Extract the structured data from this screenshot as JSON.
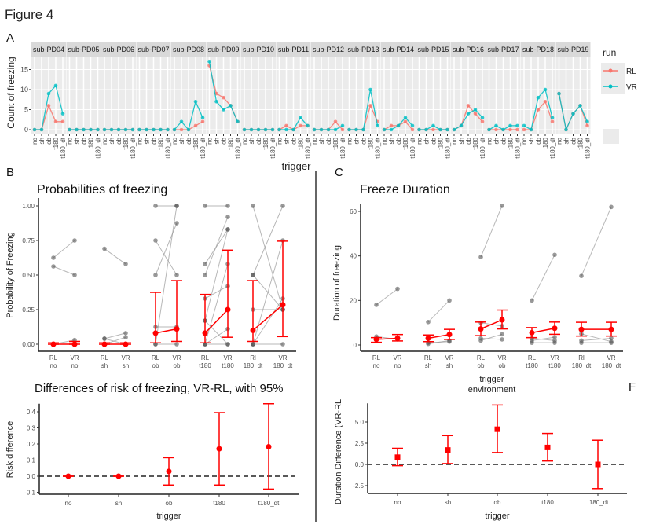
{
  "figure_title": "Figure 4",
  "panel_labels": {
    "a": "A",
    "b": "B",
    "c": "C",
    "f": "F"
  },
  "colors": {
    "RL": "#f8766d",
    "VR": "#00bfc4",
    "mean": "#ff0000",
    "individual": "#808080"
  },
  "chart_data": [
    {
      "id": "A",
      "type": "line",
      "xlabel": "trigger",
      "ylabel": "Count of freezing",
      "categories": [
        "no",
        "sh",
        "ob",
        "t180",
        "t180_dt"
      ],
      "yticks": [
        0,
        5,
        10,
        15
      ],
      "ylim": [
        0,
        17.5
      ],
      "grid": true,
      "legend": {
        "title": "run",
        "placement": "right",
        "entries": [
          "RL",
          "VR"
        ]
      },
      "facets": [
        {
          "label": "sub-PD04",
          "RL": [
            0,
            0,
            6,
            2,
            2
          ],
          "VR": [
            0,
            0,
            9,
            11,
            4
          ]
        },
        {
          "label": "sub-PD05",
          "RL": [
            0,
            0,
            0,
            0,
            0
          ],
          "VR": [
            0,
            0,
            0,
            0,
            0
          ]
        },
        {
          "label": "sub-PD06",
          "RL": [
            0,
            0,
            0,
            0,
            0
          ],
          "VR": [
            0,
            0,
            0,
            0,
            0
          ]
        },
        {
          "label": "sub-PD07",
          "RL": [
            0,
            0,
            0,
            0,
            0
          ],
          "VR": [
            0,
            0,
            0,
            0,
            0
          ]
        },
        {
          "label": "sub-PD08",
          "RL": [
            0,
            0,
            0,
            1,
            2
          ],
          "VR": [
            0,
            2,
            0,
            7,
            3
          ]
        },
        {
          "label": "sub-PD09",
          "RL": [
            16,
            9,
            8,
            6,
            2
          ],
          "VR": [
            17,
            7,
            5,
            6,
            2
          ]
        },
        {
          "label": "sub-PD10",
          "RL": [
            0,
            0,
            0,
            0,
            0
          ],
          "VR": [
            0,
            0,
            0,
            0,
            0
          ]
        },
        {
          "label": "sub-PD11",
          "RL": [
            0,
            1,
            0,
            1,
            1
          ],
          "VR": [
            0,
            0,
            0,
            3,
            1
          ]
        },
        {
          "label": "sub-PD12",
          "RL": [
            0,
            0,
            0,
            2,
            0
          ],
          "VR": [
            0,
            0,
            0,
            0,
            1
          ]
        },
        {
          "label": "sub-PD13",
          "RL": [
            0,
            0,
            0,
            6,
            2
          ],
          "VR": [
            0,
            0,
            0,
            10,
            1
          ]
        },
        {
          "label": "sub-PD14",
          "RL": [
            0,
            1,
            1,
            2,
            0
          ],
          "VR": [
            0,
            0,
            1,
            3,
            1
          ]
        },
        {
          "label": "sub-PD15",
          "RL": [
            0,
            0,
            0,
            0,
            0
          ],
          "VR": [
            0,
            0,
            1,
            0,
            0
          ]
        },
        {
          "label": "sub-PD16",
          "RL": [
            0,
            1,
            6,
            4,
            2
          ],
          "VR": [
            0,
            1,
            4,
            5,
            3
          ]
        },
        {
          "label": "sub-PD17",
          "RL": [
            0,
            0,
            0,
            0,
            0
          ],
          "VR": [
            0,
            1,
            0,
            1,
            1
          ]
        },
        {
          "label": "sub-PD18",
          "RL": [
            0,
            0,
            5,
            7,
            2
          ],
          "VR": [
            1,
            0,
            8,
            10,
            3
          ]
        },
        {
          "label": "sub-PD19",
          "RL": [
            9,
            0,
            4,
            6,
            1
          ],
          "VR": [
            9,
            0,
            4,
            6,
            2
          ]
        }
      ]
    },
    {
      "id": "B",
      "type": "line",
      "title": "Probabilities of freezing",
      "ylabel": "Probability of Freezing",
      "xlabel": "",
      "ylim": [
        0,
        1
      ],
      "yticks": [
        "0.00",
        "0.25",
        "0.50",
        "0.75",
        "1.00"
      ],
      "grid": false,
      "groups": [
        {
          "labels": [
            [
              "RL",
              "no"
            ],
            [
              "VR",
              "no"
            ]
          ],
          "mean": [
            0,
            0
          ],
          "ci": [
            [
              0,
              0.01
            ],
            [
              0,
              0.02
            ]
          ],
          "pairs": [
            [
              0.625,
              0.75
            ],
            [
              0.5625,
              0.5
            ],
            [
              0,
              0.03
            ]
          ]
        },
        {
          "labels": [
            [
              "RL",
              "sh"
            ],
            [
              "VR",
              "sh"
            ]
          ],
          "mean": [
            0,
            0
          ],
          "ci": [
            [
              0,
              0.01
            ],
            [
              0,
              0.01
            ]
          ],
          "pairs": [
            [
              0.69,
              0.58
            ],
            [
              0.04,
              0
            ],
            [
              0.04,
              0.08
            ],
            [
              0,
              0.05
            ]
          ]
        },
        {
          "labels": [
            [
              "RL",
              "ob"
            ],
            [
              "VR",
              "ob"
            ]
          ],
          "mean": [
            0.08,
            0.11
          ],
          "ci": [
            [
              0.01,
              0.375
            ],
            [
              0.02,
              0.46
            ]
          ],
          "pairs": [
            [
              1,
              1
            ],
            [
              0.75,
              0.5
            ],
            [
              0.5,
              0.875
            ],
            [
              0.125,
              0.125
            ],
            [
              0,
              1
            ],
            [
              0,
              0
            ]
          ]
        },
        {
          "labels": [
            [
              "RL",
              "t180"
            ],
            [
              "VR",
              "t180"
            ]
          ],
          "mean": [
            0.08,
            0.25
          ],
          "ci": [
            [
              0.01,
              0.36
            ],
            [
              0.05,
              0.68
            ]
          ],
          "pairs": [
            [
              1,
              1
            ],
            [
              0.58,
              0.83
            ],
            [
              0.5,
              0.92
            ],
            [
              0.33,
              0.42
            ],
            [
              0.17,
              0.83
            ],
            [
              0.17,
              0
            ],
            [
              0,
              0.58
            ],
            [
              0,
              0.11
            ],
            [
              0,
              0
            ]
          ]
        },
        {
          "labels": [
            [
              "Rl",
              "180_dt"
            ],
            [
              "VR",
              "180_dt"
            ]
          ],
          "mean": [
            0.1,
            0.285
          ],
          "ci": [
            [
              0.02,
              0.46
            ],
            [
              0.055,
              0.745
            ]
          ],
          "pairs": [
            [
              1,
              0.25
            ],
            [
              0.5,
              1
            ],
            [
              0.5,
              0.25
            ],
            [
              0.25,
              0.25
            ],
            [
              0,
              0.75
            ],
            [
              0,
              0.33
            ],
            [
              0,
              0
            ]
          ]
        }
      ]
    },
    {
      "id": "C",
      "type": "line",
      "title": "Freeze Duration",
      "ylabel": "Duration of freezing",
      "xlabel": [
        "trigger",
        "environment"
      ],
      "ylim": [
        0,
        65
      ],
      "yticks": [
        "0",
        "20",
        "40",
        "60"
      ],
      "grid": false,
      "groups": [
        {
          "labels": [
            [
              "RL",
              "no"
            ],
            [
              "VR",
              "no"
            ]
          ],
          "mean": [
            2.5,
            3.0
          ],
          "ci": [
            [
              1.2,
              3.3
            ],
            [
              1.8,
              4.7
            ]
          ],
          "pairs": [
            [
              18,
              25.2
            ],
            [
              3.8,
              2.5
            ]
          ]
        },
        {
          "labels": [
            [
              "RL",
              "sh"
            ],
            [
              "VR",
              "sh"
            ]
          ],
          "mean": [
            3.0,
            4.7
          ],
          "ci": [
            [
              1.5,
              4.5
            ],
            [
              2.5,
              7.0
            ]
          ],
          "pairs": [
            [
              10.3,
              20
            ],
            [
              0.5,
              2
            ],
            [
              1,
              1.5
            ]
          ]
        },
        {
          "labels": [
            [
              "RL",
              "ob"
            ],
            [
              "VR",
              "ob"
            ]
          ],
          "mean": [
            7.2,
            11.3
          ],
          "ci": [
            [
              4.2,
              10.3
            ],
            [
              7.2,
              15.7
            ]
          ],
          "pairs": [
            [
              39.5,
              62.5
            ],
            [
              2,
              4.8
            ],
            [
              3,
              2.5
            ],
            [
              10,
              8.5
            ]
          ]
        },
        {
          "labels": [
            [
              "RL",
              "t180"
            ],
            [
              "VR",
              "t180"
            ]
          ],
          "mean": [
            5.5,
            7.5
          ],
          "ci": [
            [
              3.3,
              7.8
            ],
            [
              4.8,
              10.3
            ]
          ],
          "pairs": [
            [
              20,
              40.5
            ],
            [
              1,
              1
            ],
            [
              2,
              3.5
            ],
            [
              3,
              2
            ]
          ]
        },
        {
          "labels": [
            [
              "Rl",
              "180_dt"
            ],
            [
              "VR",
              "180_dt"
            ]
          ],
          "mean": [
            7.0,
            7.0
          ],
          "ci": [
            [
              4.0,
              10.2
            ],
            [
              4.0,
              10.2
            ]
          ],
          "pairs": [
            [
              31,
              62
            ],
            [
              1,
              1
            ],
            [
              2,
              3
            ],
            [
              5,
              1.5
            ]
          ]
        }
      ]
    },
    {
      "id": "B-bottom",
      "type": "scatter",
      "title": "Differences of risk of freezing, VR-RL, with 95%",
      "ylabel": "Risk difference",
      "xlabel": "trigger",
      "categories": [
        "no",
        "sh",
        "ob",
        "t180",
        "t180_dt"
      ],
      "values": [
        0,
        0,
        0.03,
        0.17,
        0.183
      ],
      "ci": [
        [
          0,
          0
        ],
        [
          0,
          0
        ],
        [
          -0.055,
          0.115
        ],
        [
          -0.055,
          0.395
        ],
        [
          -0.08,
          0.45
        ]
      ],
      "ylim": [
        -0.1,
        0.45
      ],
      "yticks": [
        "-0.1",
        "0.0",
        "0.1",
        "0.2",
        "0.3",
        "0.4"
      ],
      "reference_line": 0
    },
    {
      "id": "F",
      "type": "scatter",
      "title": "",
      "ylabel": "Duration Difference (VR-RL",
      "xlabel": "trigger",
      "categories": [
        "no",
        "sh",
        "ob",
        "t180",
        "t180_dt"
      ],
      "values": [
        0.85,
        1.7,
        4.15,
        2.0,
        0
      ],
      "ci": [
        [
          -0.15,
          1.9
        ],
        [
          0.1,
          3.4
        ],
        [
          1.4,
          7.0
        ],
        [
          0.4,
          3.65
        ],
        [
          -2.85,
          2.85
        ]
      ],
      "ylim": [
        -3,
        7.2
      ],
      "yticks": [
        "-2.5",
        "0.0",
        "2.5",
        "5.0"
      ],
      "reference_line": 0
    }
  ]
}
